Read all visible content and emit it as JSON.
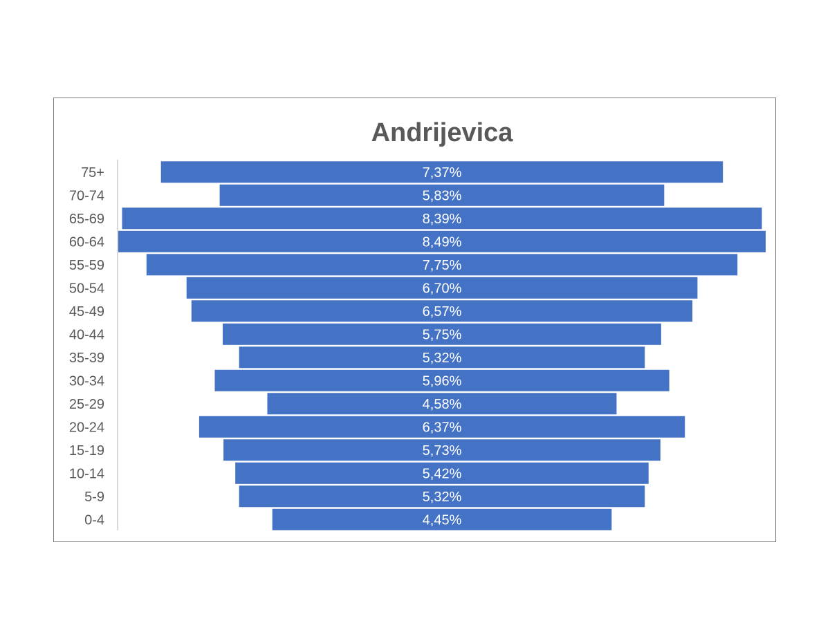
{
  "chart_data": {
    "type": "bar",
    "orientation": "horizontal-centered",
    "title": "Andrijevica",
    "categories": [
      "75+",
      "70-74",
      "65-69",
      "60-64",
      "55-59",
      "50-54",
      "45-49",
      "40-44",
      "35-39",
      "30-34",
      "25-29",
      "20-24",
      "15-19",
      "10-14",
      "5-9",
      "0-4"
    ],
    "values": [
      7.37,
      5.83,
      8.39,
      8.49,
      7.75,
      6.7,
      6.57,
      5.75,
      5.32,
      5.96,
      4.58,
      6.37,
      5.73,
      5.42,
      5.32,
      4.45
    ],
    "data_labels": [
      "7,37%",
      "5,83%",
      "8,39%",
      "8,49%",
      "7,75%",
      "6,70%",
      "6,57%",
      "5,75%",
      "5,32%",
      "5,96%",
      "4,58%",
      "6,37%",
      "5,73%",
      "5,42%",
      "5,32%",
      "4,45%"
    ],
    "xlabel": "",
    "ylabel": "",
    "xlim": [
      0,
      8.49
    ],
    "grid": false,
    "legend": "none",
    "colors": {
      "bar": "#4472c4",
      "title": "#595959",
      "tick_label": "#595959",
      "data_label": "#ffffff",
      "axis_line": "#d9d9d9",
      "frame_border": "#7f7f7f"
    }
  }
}
